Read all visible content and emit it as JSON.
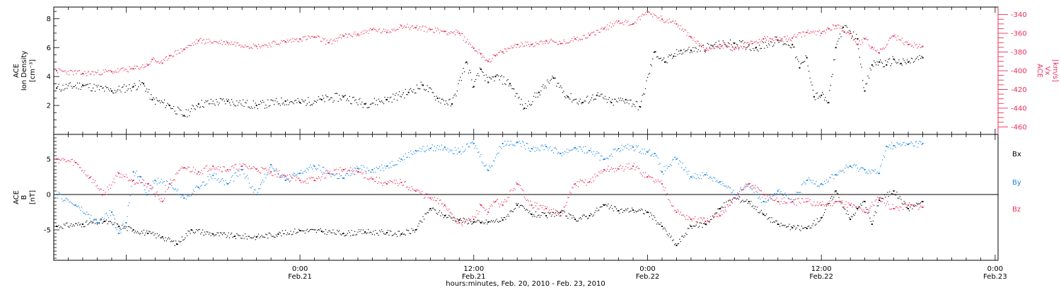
{
  "xaxis": {
    "title": "hours:minutes, Feb. 20, 2010 - Feb. 23, 2010",
    "range_hours": [
      -17,
      48.2
    ],
    "ticks": [
      {
        "hour": 0,
        "time": "0:00",
        "date": "Feb.21"
      },
      {
        "hour": 12,
        "time": "12:00",
        "date": "Feb.21"
      },
      {
        "hour": 24,
        "time": "0:00",
        "date": "Feb.22"
      },
      {
        "hour": 36,
        "time": "12:00",
        "date": "Feb.22"
      },
      {
        "hour": 48,
        "time": "0:00",
        "date": "Feb.23"
      }
    ],
    "major_tick_step_hours": 12,
    "minor_tick_step_hours": 1
  },
  "colors": {
    "black": "#000000",
    "red": "#e8305a",
    "blue": "#1e88e5"
  },
  "chart_data": [
    {
      "type": "scatter",
      "panel": "top",
      "ylabel": [
        "ACE",
        "Ion Density",
        "[cm⁻³]"
      ],
      "ylim": [
        0,
        8.8
      ],
      "yticks": [
        2,
        4,
        6,
        8
      ],
      "right_axis": {
        "ylabel": [
          "ACE",
          "Vx",
          "[km/s]"
        ],
        "ylim": [
          -468,
          -332
        ],
        "yticks": [
          -460,
          -440,
          -420,
          -400,
          -380,
          -360,
          -340
        ]
      },
      "series": [
        {
          "color": "black",
          "axis": "left",
          "x": [
            -16.8,
            -15,
            -13,
            -11.5,
            -10.8,
            -10.2,
            -9,
            -8,
            -7,
            -5,
            -3,
            -1,
            0,
            1.5,
            3,
            4.5,
            6,
            7.5,
            8.5,
            9.5,
            10.5,
            11.5,
            12,
            12.5,
            13,
            13.5,
            14.5,
            15.5,
            16.5,
            17.5,
            18.5,
            19.5,
            20.5,
            21.5,
            22.5,
            23.5,
            24.5,
            25.2,
            25.8,
            26.3,
            27,
            28.5,
            30,
            31.5,
            33,
            34,
            34.5,
            35,
            35.5,
            36,
            36.5,
            37,
            37.5,
            38.5,
            39,
            39.5,
            40,
            40.5,
            41,
            41.5,
            42,
            43
          ],
          "y": [
            3.2,
            3.4,
            3.0,
            3.3,
            3.5,
            2.4,
            2.0,
            1.3,
            2.1,
            2.3,
            2.0,
            2.3,
            2.2,
            2.4,
            2.6,
            2.1,
            2.4,
            2.9,
            3.4,
            2.5,
            2.1,
            5.0,
            3.3,
            4.5,
            3.6,
            4.0,
            3.5,
            1.8,
            2.9,
            3.9,
            2.6,
            2.2,
            2.7,
            2.2,
            2.4,
            1.9,
            5.7,
            5.0,
            5.4,
            5.8,
            5.8,
            6.1,
            6.3,
            6.0,
            6.5,
            6.2,
            4.6,
            5.3,
            2.6,
            2.7,
            2.2,
            6.0,
            7.4,
            6.6,
            3.0,
            4.8,
            5.0,
            4.8,
            5.2,
            4.9,
            5.0,
            5.3
          ]
        },
        {
          "color": "red",
          "axis": "right",
          "x": [
            -16.8,
            -15,
            -13,
            -11.5,
            -10.5,
            -10.2,
            -9.5,
            -9,
            -8,
            -7,
            -5,
            -3,
            -1,
            0,
            1,
            2,
            3,
            4,
            5,
            6,
            7,
            8,
            9,
            10,
            11,
            12,
            12.5,
            13,
            13.5,
            14,
            15,
            16,
            17,
            18,
            19,
            20,
            21,
            22,
            23,
            24,
            25,
            26,
            27,
            28,
            29,
            30,
            31,
            32,
            33,
            34,
            35,
            36,
            36.5,
            37,
            38,
            38.5,
            39,
            39.5,
            40,
            41,
            42,
            43
          ],
          "y": [
            -400,
            -403,
            -401,
            -398,
            -394,
            -388,
            -392,
            -384,
            -377,
            -368,
            -370,
            -374,
            -369,
            -366,
            -364,
            -370,
            -363,
            -361,
            -356,
            -359,
            -352,
            -354,
            -356,
            -358,
            -360,
            -376,
            -382,
            -390,
            -384,
            -380,
            -372,
            -372,
            -368,
            -371,
            -366,
            -362,
            -355,
            -347,
            -350,
            -337,
            -345,
            -350,
            -364,
            -378,
            -372,
            -377,
            -372,
            -366,
            -367,
            -365,
            -359,
            -360,
            -355,
            -352,
            -360,
            -372,
            -366,
            -375,
            -381,
            -363,
            -372,
            -374
          ]
        }
      ]
    },
    {
      "type": "scatter",
      "panel": "bottom",
      "ylabel": [
        "ACE",
        "B",
        "[nT]"
      ],
      "ylim": [
        -9.3,
        8.5
      ],
      "yticks": [
        -5,
        0,
        5
      ],
      "zero_line": true,
      "series": [
        {
          "name": "Bx",
          "color": "black",
          "x": [
            -16.8,
            -15,
            -13.5,
            -12.5,
            -11.5,
            -10.5,
            -9.5,
            -8.5,
            -7.5,
            -6,
            -4.5,
            -3,
            -1.5,
            0,
            1.5,
            3,
            4.5,
            6,
            7,
            8,
            9,
            10,
            11,
            12,
            12.5,
            13,
            14,
            15,
            16,
            17,
            18,
            19,
            20,
            21,
            22,
            23,
            24,
            25,
            26,
            27,
            28,
            29,
            30,
            31,
            32,
            33,
            34,
            35,
            36,
            37,
            38,
            38.5,
            39,
            39.5,
            40,
            41,
            42,
            43
          ],
          "y": [
            -4.5,
            -4.2,
            -3.8,
            -4.5,
            -5.0,
            -5.5,
            -6.0,
            -7.0,
            -5.0,
            -5.6,
            -5.9,
            -6.0,
            -5.6,
            -5.1,
            -5.2,
            -5.5,
            -5.3,
            -5.4,
            -5.6,
            -5.0,
            -2.0,
            -3.0,
            -3.6,
            -3.9,
            -4.0,
            -3.9,
            -3.6,
            -1.5,
            -2.8,
            -3.0,
            -2.5,
            -3.5,
            -3.0,
            -1.5,
            -2.3,
            -2.2,
            -2.5,
            -4.5,
            -7.2,
            -4.5,
            -4.2,
            -2.0,
            -0.5,
            -1.0,
            -2.8,
            -4.2,
            -4.7,
            -4.8,
            -3.3,
            0.5,
            -3.5,
            -2.0,
            -1.0,
            -4.2,
            -0.8,
            0.5,
            -2.0,
            -1.0
          ]
        },
        {
          "name": "By",
          "color": "blue",
          "x": [
            -16.8,
            -15.5,
            -14,
            -13,
            -12.5,
            -12,
            -11.5,
            -11,
            -10.5,
            -10,
            -9,
            -8,
            -7,
            -6,
            -5,
            -4,
            -3,
            -2,
            -1,
            0,
            1,
            2,
            3,
            4,
            5,
            6,
            7,
            8,
            9,
            10,
            11,
            12,
            13,
            14,
            15,
            16,
            17,
            18,
            19,
            20,
            21,
            22,
            23,
            24,
            24.5,
            25,
            26,
            27,
            28,
            29,
            30,
            31,
            32,
            33,
            34,
            35,
            36,
            37,
            38,
            39,
            40,
            40.5,
            41,
            42,
            43
          ],
          "y": [
            0,
            -1.5,
            -4,
            -2.5,
            -5.5,
            -4,
            3.2,
            2.5,
            0,
            2,
            1.5,
            -0.5,
            1,
            2.7,
            1.5,
            3.5,
            0,
            4.2,
            2,
            3,
            4,
            3,
            2.3,
            3.7,
            3.5,
            4,
            5,
            6.2,
            6.5,
            6.7,
            6,
            7.2,
            3.4,
            7.2,
            7.4,
            6.5,
            6.8,
            5.8,
            6.6,
            6.2,
            5,
            6.5,
            6.7,
            6,
            5.8,
            3.2,
            5,
            2.5,
            2.8,
            1.8,
            0,
            1.5,
            -1,
            0.5,
            -1,
            2,
            1.5,
            2.8,
            4,
            3.5,
            3,
            6.8,
            6.9,
            7.1,
            7.2
          ]
        },
        {
          "name": "Bz",
          "color": "red",
          "x": [
            -16.8,
            -15.5,
            -14.5,
            -13.5,
            -12.5,
            -11.5,
            -10.5,
            -9.5,
            -9,
            -8,
            -7,
            -6,
            -5,
            -4,
            -3,
            -2,
            -1,
            0,
            1,
            2,
            3,
            4,
            5,
            6,
            7,
            8,
            9,
            10,
            11,
            12,
            12.5,
            13,
            13.5,
            14,
            15,
            16,
            17,
            18,
            19,
            20,
            21,
            22,
            23,
            24,
            25,
            26,
            27,
            28,
            29,
            30,
            31,
            32,
            33,
            34,
            35,
            36,
            37,
            38,
            39,
            40,
            41,
            42,
            43
          ],
          "y": [
            5,
            4.5,
            2.4,
            0,
            3,
            2,
            1.5,
            -1,
            1.5,
            3.8,
            3.2,
            4,
            3.5,
            4,
            3.6,
            3.2,
            2.6,
            2,
            2,
            3,
            3.5,
            3.2,
            2.2,
            1.5,
            1.7,
            0.5,
            -0.5,
            -1.5,
            -4,
            -3.5,
            -1.5,
            -2.5,
            -1,
            -1.5,
            1.5,
            -1.5,
            -2,
            -3,
            1.5,
            1.8,
            3.5,
            3.6,
            4,
            2.5,
            1.5,
            -2.5,
            -3.5,
            -3.8,
            -3.0,
            -0.5,
            1.5,
            0,
            -1,
            -1,
            -1,
            -1.5,
            -1,
            -1.5,
            -2.5,
            -0.5,
            -2,
            -1.5,
            -1.8
          ]
        }
      ]
    }
  ]
}
